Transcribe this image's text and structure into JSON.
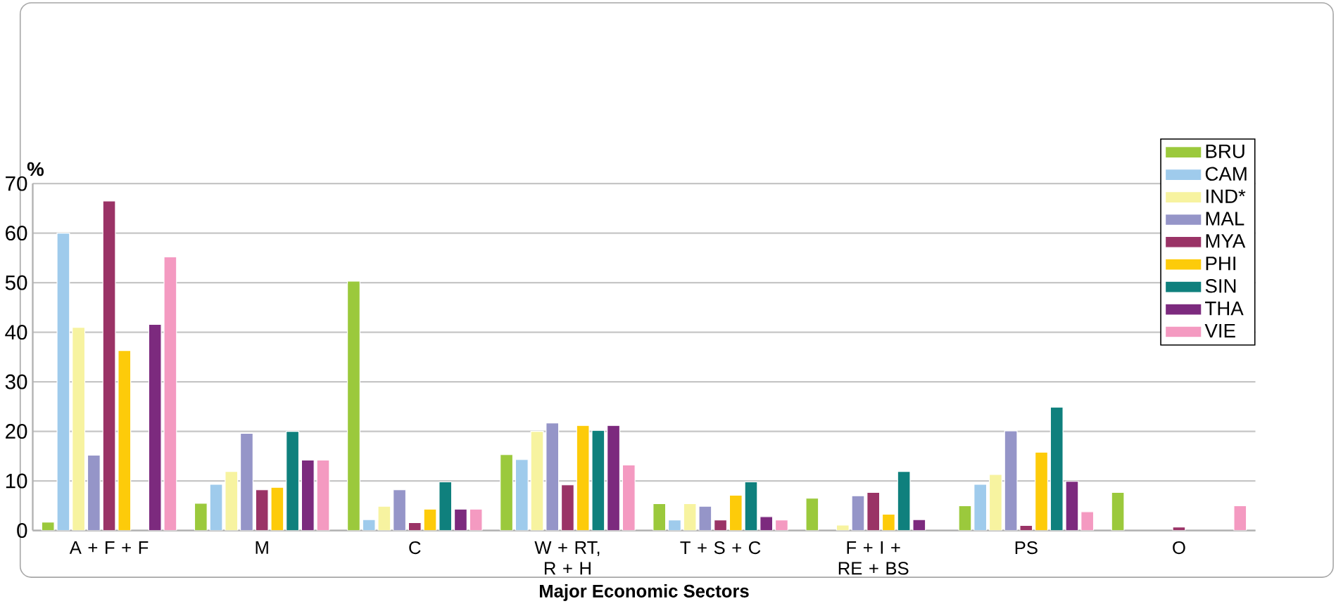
{
  "chart_data": {
    "type": "bar",
    "ylabel": "%",
    "xlabel": "Major Economic Sectors",
    "categories": [
      "A + F + F",
      "M",
      "C",
      "W + RT, R + H",
      "T + S + C",
      "F + I + RE + BS",
      "PS",
      "O"
    ],
    "series": [
      {
        "name": "BRU",
        "color": "#9bc93c",
        "values": [
          1.7,
          5.5,
          50.3,
          15.3,
          5.4,
          6.5,
          5.0,
          7.7
        ]
      },
      {
        "name": "CAM",
        "color": "#9fcbec",
        "values": [
          60,
          9.3,
          2.2,
          14.3,
          2.1,
          null,
          9.3,
          null
        ]
      },
      {
        "name": "IND*",
        "color": "#f7f3a0",
        "values": [
          41,
          11.9,
          4.9,
          20,
          5.4,
          1.1,
          11.3,
          null
        ]
      },
      {
        "name": "MAL",
        "color": "#9595c8",
        "values": [
          15.2,
          19.6,
          8.2,
          21.7,
          4.9,
          7.0,
          20.1,
          null
        ]
      },
      {
        "name": "MYA",
        "color": "#9a3366",
        "values": [
          66.5,
          8.2,
          1.6,
          9.2,
          2.1,
          7.7,
          1.0,
          0.7
        ]
      },
      {
        "name": "PHI",
        "color": "#fdcb0a",
        "values": [
          36.3,
          8.7,
          4.3,
          21.2,
          7.1,
          3.3,
          15.8,
          null
        ]
      },
      {
        "name": "SIN",
        "color": "#0f807d",
        "values": [
          null,
          20,
          9.8,
          20.2,
          9.8,
          11.9,
          24.9,
          null
        ]
      },
      {
        "name": "THA",
        "color": "#7c2a7e",
        "values": [
          41.6,
          14.2,
          4.3,
          21.2,
          2.8,
          2.2,
          9.9,
          null
        ]
      },
      {
        "name": "VIE",
        "color": "#f49ac1",
        "values": [
          55.2,
          14.2,
          4.3,
          13.2,
          2.1,
          null,
          3.8,
          5.0
        ]
      }
    ],
    "ylim": [
      0,
      70
    ],
    "yticks": [
      0,
      10,
      20,
      30,
      40,
      50,
      60,
      70
    ],
    "grid": "y",
    "legend": "top right"
  }
}
